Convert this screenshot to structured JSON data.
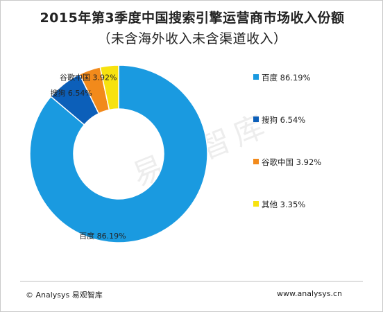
{
  "title": "2015年第3季度中国搜索引擎运营商市场收入份额",
  "subtitle": "（未含海外收入未含渠道收入）",
  "watermark": "易观智库",
  "footer": {
    "left": "© Analysys 易观智库",
    "right": "www.analysys.cn"
  },
  "chart_data": {
    "type": "pie",
    "variant": "donut",
    "legend_position": "right",
    "series": [
      {
        "name": "百度",
        "value": 86.19,
        "label": "86.19%",
        "color": "#1a9ae0"
      },
      {
        "name": "搜狗",
        "value": 6.54,
        "label": "6.54%",
        "color": "#0c5fb9"
      },
      {
        "name": "谷歌中国",
        "value": 3.92,
        "label": "3.92%",
        "color": "#f28a1b"
      },
      {
        "name": "其他",
        "value": 3.35,
        "label": "3.35%",
        "color": "#f7e20f"
      }
    ]
  }
}
